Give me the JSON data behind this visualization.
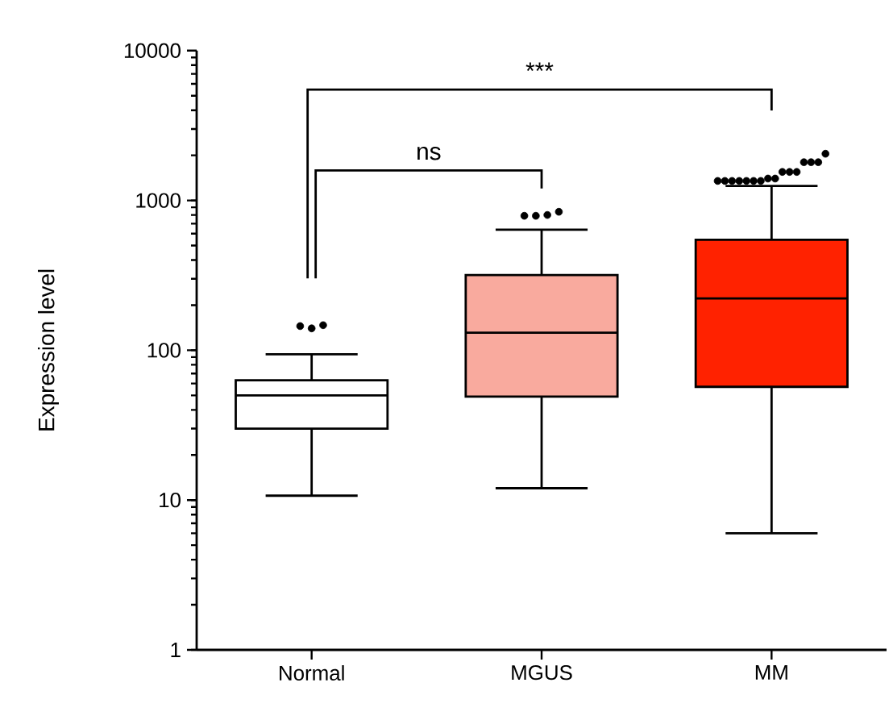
{
  "chart_data": {
    "type": "box",
    "ylabel": "Expression level",
    "categories": [
      "Normal",
      "MGUS",
      "MM"
    ],
    "colors": [
      "#ffffff",
      "#f9aa9e",
      "#ff2200"
    ],
    "boxes": [
      {
        "low": 10.7,
        "q1": 30,
        "median": 50,
        "q3": 63,
        "high": 94,
        "outliers": [
          145,
          140,
          147
        ]
      },
      {
        "low": 12,
        "q1": 49,
        "median": 131,
        "q3": 318,
        "high": 638,
        "outliers": [
          790,
          790,
          800,
          840
        ]
      },
      {
        "low": 6,
        "q1": 57,
        "median": 222,
        "q3": 546,
        "high": 1250,
        "outliers": [
          1350,
          1350,
          1350,
          1350,
          1350,
          1350,
          1350,
          1400,
          1400,
          1550,
          1550,
          1550,
          1800,
          1800,
          1800,
          2050
        ]
      }
    ],
    "ylim": [
      1,
      10000
    ],
    "yticks": [
      1,
      10,
      100,
      1000,
      10000
    ],
    "log": "y",
    "grid": false,
    "annotations": [
      "ns",
      "***"
    ]
  }
}
